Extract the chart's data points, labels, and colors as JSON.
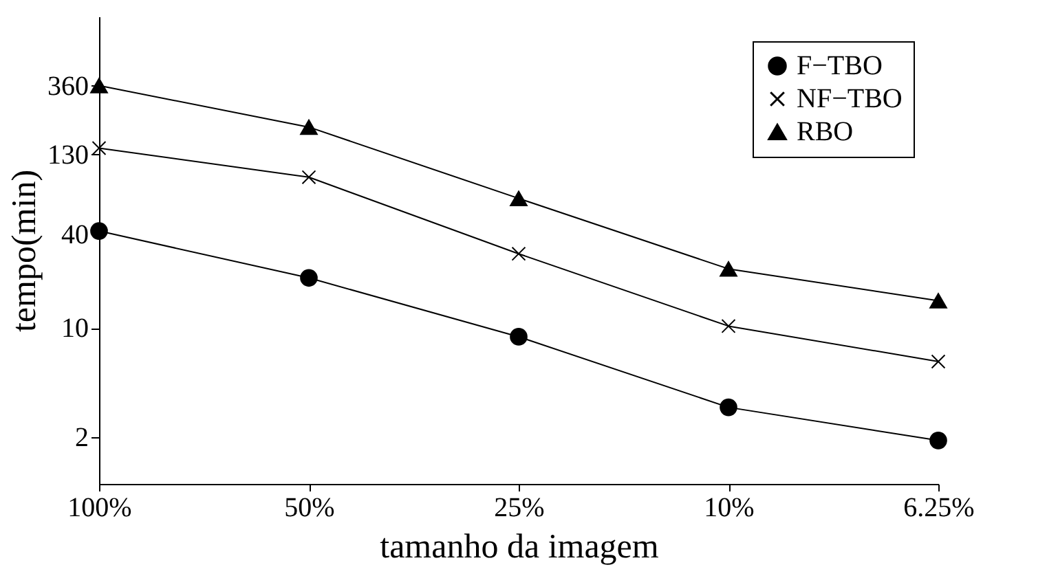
{
  "chart_data": {
    "type": "line",
    "xlabel": "tamanho da imagem",
    "ylabel": "tempo(min)",
    "categories": [
      "100%",
      "50%",
      "25%",
      "10%",
      "6.25%"
    ],
    "log": true,
    "ylim": [
      1,
      1000
    ],
    "yticks": [
      2,
      10,
      40,
      130,
      360
    ],
    "grid": false,
    "legend": "top right",
    "series": [
      {
        "name": "F−TBO",
        "color": "#000000",
        "marker": "circle",
        "values": [
          42,
          21,
          8.8,
          3.1,
          1.9
        ]
      },
      {
        "name": "NF−TBO",
        "color": "#000000",
        "marker": "cross",
        "values": [
          143,
          93,
          30,
          10.3,
          6.1
        ]
      },
      {
        "name": "RBO",
        "color": "#000000",
        "marker": "triangle",
        "values": [
          360,
          195,
          68,
          24,
          15
        ]
      }
    ]
  }
}
